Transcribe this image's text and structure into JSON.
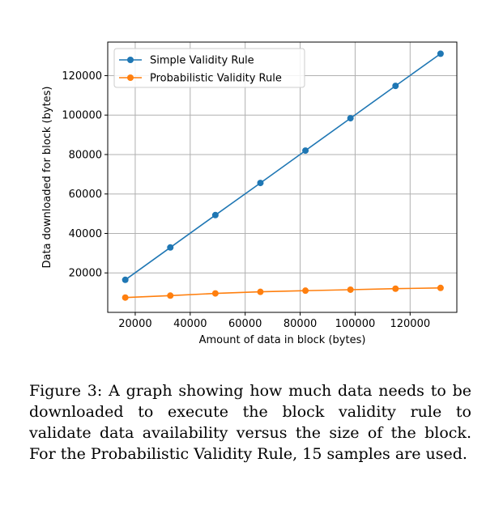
{
  "caption": "Figure 3: A graph showing how much data needs to be downloaded to execute the block validity rule to validate data availability versus the size of the block. For the Probabilistic Validity Rule, 15 samples are used.",
  "chart_data": {
    "type": "line",
    "title": "",
    "xlabel": "Amount of data in block (bytes)",
    "ylabel": "Data downloaded for block (bytes)",
    "xlim": [
      10000,
      137000
    ],
    "ylim": [
      0,
      137000
    ],
    "xticks": [
      20000,
      40000,
      60000,
      80000,
      100000,
      120000
    ],
    "xtick_labels": [
      "20000",
      "40000",
      "60000",
      "80000",
      "100000",
      "120000"
    ],
    "yticks": [
      20000,
      40000,
      60000,
      80000,
      100000,
      120000
    ],
    "ytick_labels": [
      "20000",
      "40000",
      "60000",
      "80000",
      "100000",
      "120000"
    ],
    "grid": true,
    "legend_position": "top-left",
    "x": [
      16384,
      32768,
      49152,
      65536,
      81920,
      98304,
      114688,
      131072
    ],
    "series": [
      {
        "name": "Simple Validity Rule",
        "color": "#1f77b4",
        "values": [
          16500,
          32900,
          49300,
          65600,
          82000,
          98400,
          114800,
          131100
        ]
      },
      {
        "name": "Probabilistic Validity Rule",
        "color": "#ff7f0e",
        "values": [
          7500,
          8500,
          9600,
          10400,
          11000,
          11500,
          12000,
          12400
        ]
      }
    ]
  }
}
